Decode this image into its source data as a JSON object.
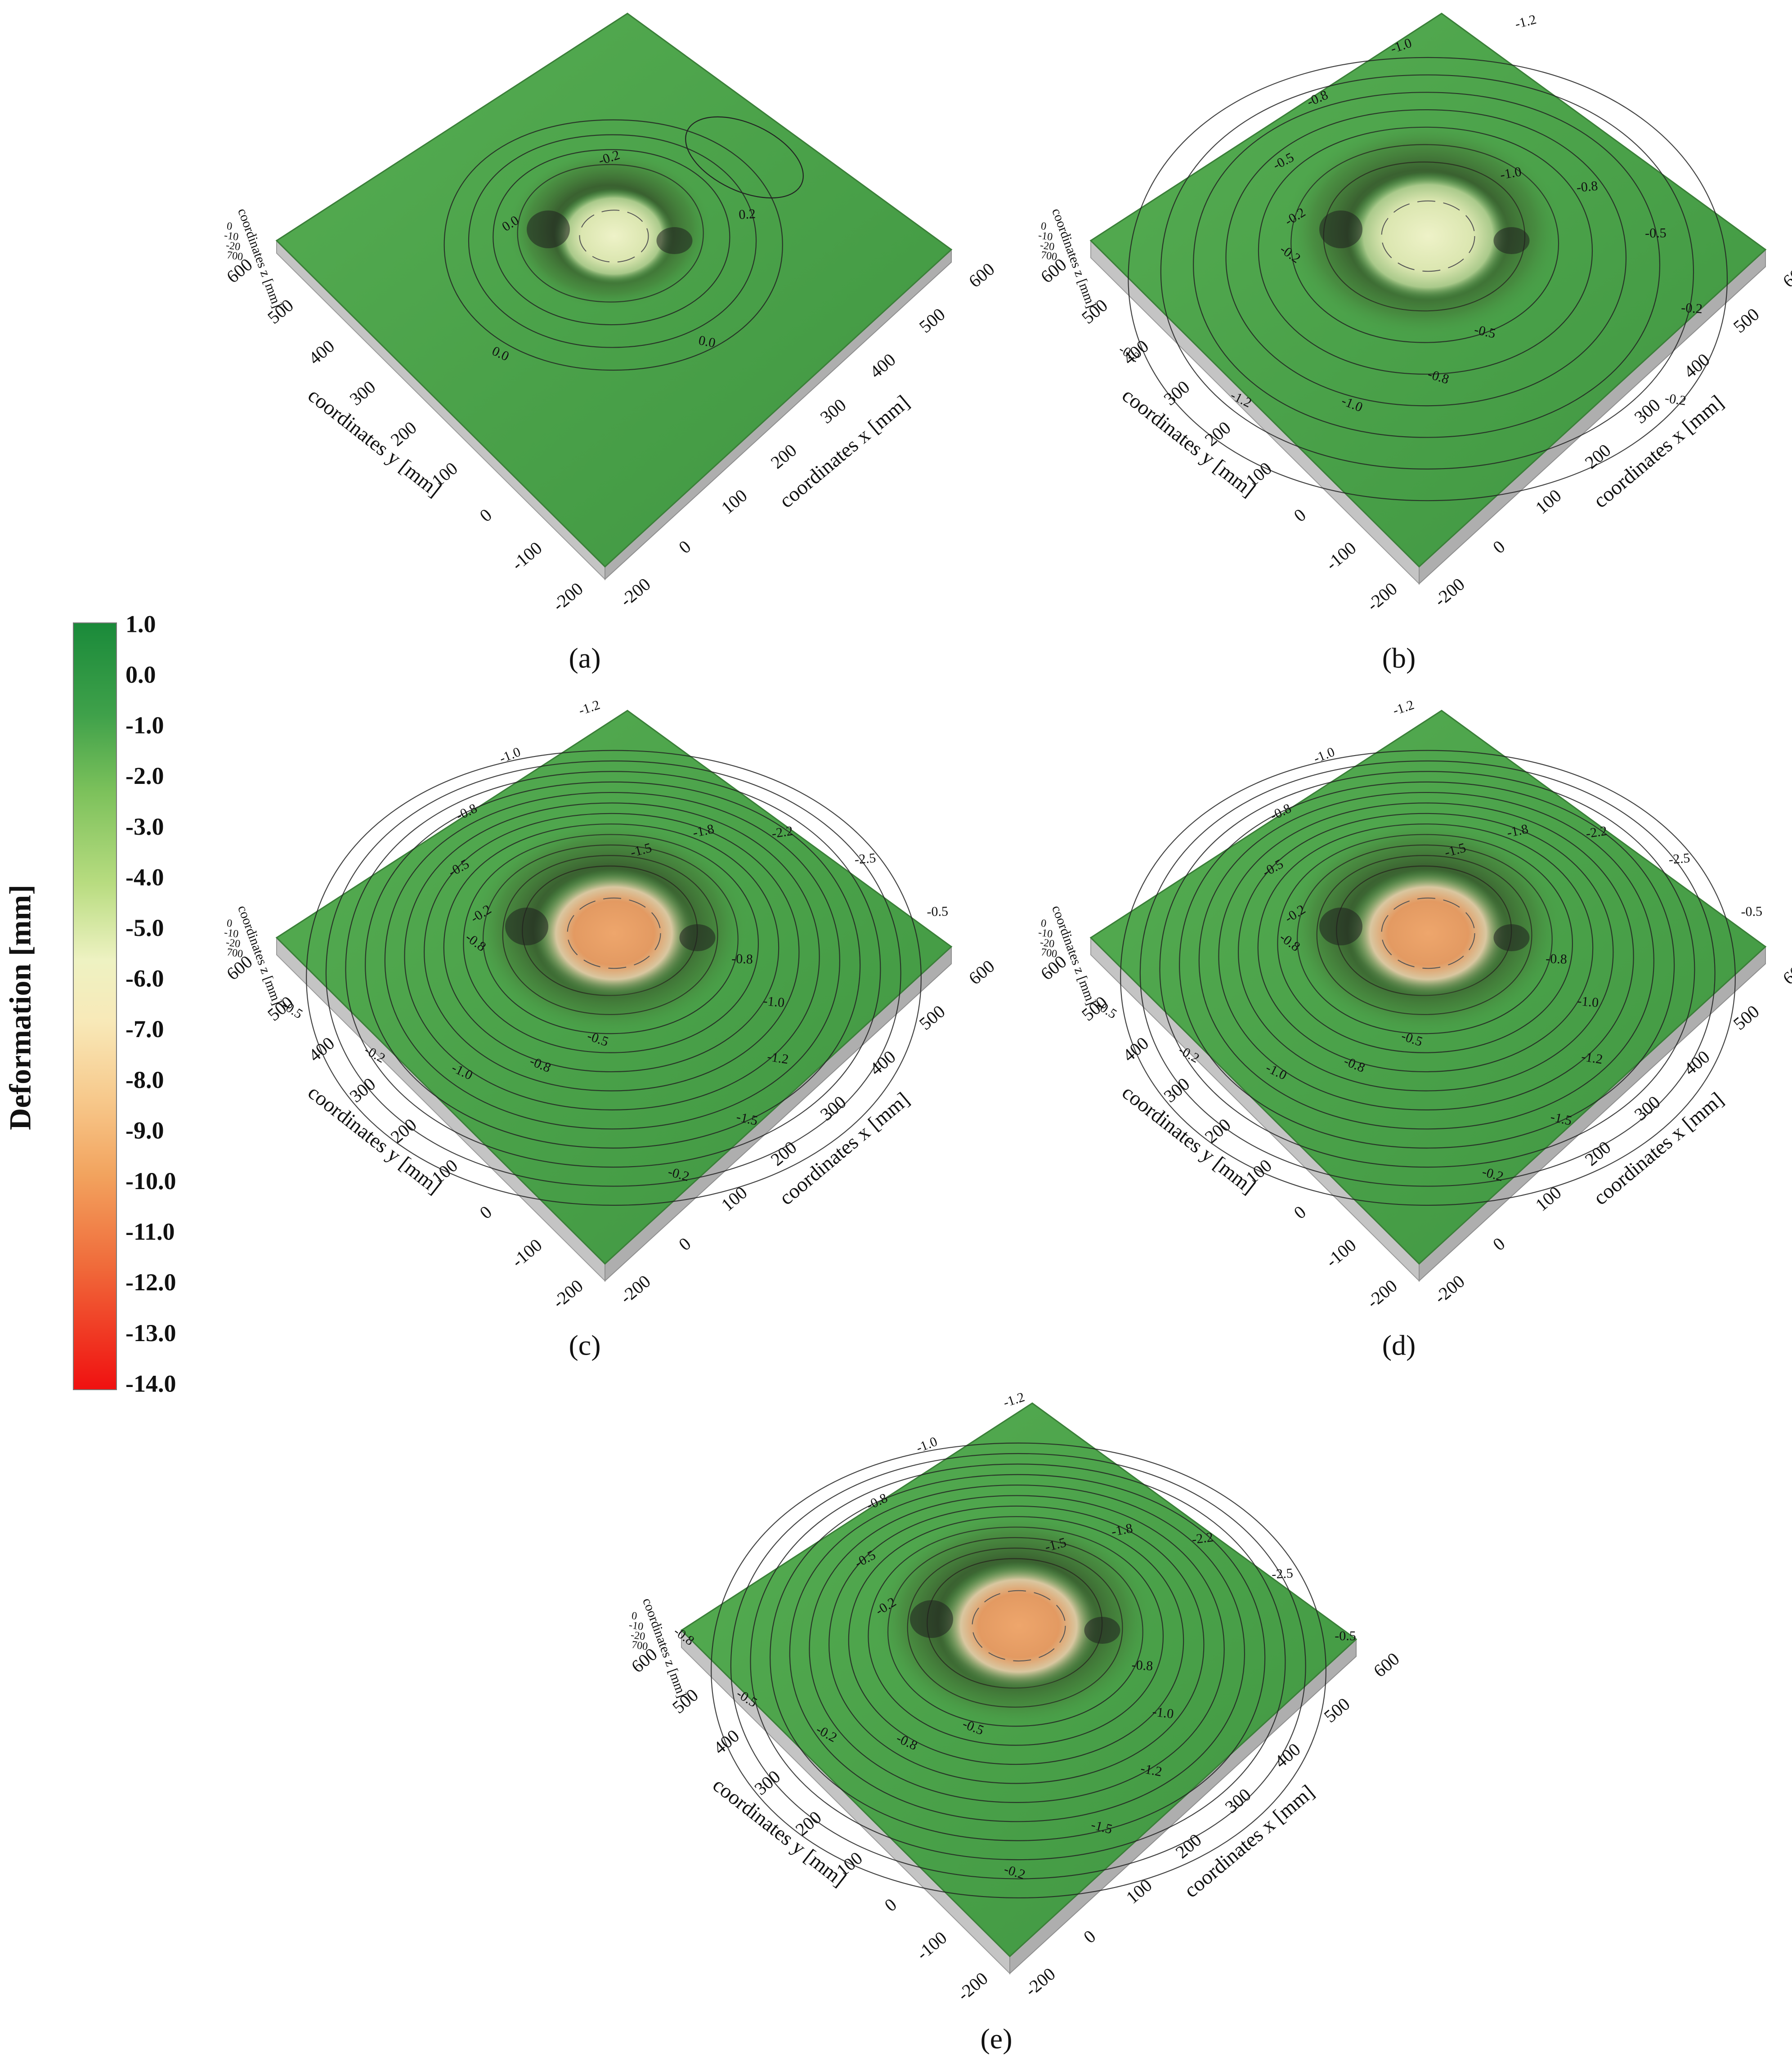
{
  "legend": {
    "title": "Deformation [mm]",
    "ticks": [
      "1.0",
      "0.0",
      "-1.0",
      "-2.0",
      "-3.0",
      "-4.0",
      "-5.0",
      "-6.0",
      "-7.0",
      "-8.0",
      "-9.0",
      "-10.0",
      "-11.0",
      "-12.0",
      "-13.0",
      "-14.0"
    ],
    "colors": {
      "top": "#1f8a3c",
      "mid_green": "#7fc25a",
      "pale": "#f4f3c7",
      "orange": "#f0a060",
      "red": "#f01010"
    }
  },
  "colors": {
    "surface_green": "#4ea34b",
    "surface_edge": "#3d8a3a",
    "side_gray": "#b9b9b9",
    "contour": "#2a2a2a",
    "center_pale": "#dfe6b8",
    "center_orange": "#e3a06a"
  },
  "axes": {
    "x_label": "coordinates x [mm]",
    "y_label": "coordinates y [mm]",
    "z_label": "coordinates z [mm]",
    "x_ticks": [
      "-200",
      "0",
      "100",
      "200",
      "300",
      "400",
      "500",
      "600"
    ],
    "y_ticks": [
      "-200",
      "-100",
      "0",
      "100",
      "200",
      "300",
      "400",
      "500",
      "600"
    ],
    "z_ticks": [
      "0",
      "-10",
      "-20",
      "700"
    ]
  },
  "panels": [
    {
      "id": "a",
      "caption": "(a)",
      "center": "pale",
      "contour_count": 4,
      "contour_labels": [
        "0.0",
        "-0.2",
        "0.2",
        "0.0",
        "0.0"
      ]
    },
    {
      "id": "b",
      "caption": "(b)",
      "center": "pale",
      "contour_count": 7,
      "contour_labels": [
        "-0.2",
        "-0.5",
        "-0.8",
        "-1.0",
        "-1.2",
        "-1.0",
        "-0.8",
        "-0.5",
        "-0.2",
        "-0.2",
        "-0.5",
        "-0.8",
        "-1.0",
        "-1.2",
        "-0.2",
        "-0.2"
      ]
    },
    {
      "id": "c",
      "caption": "(c)",
      "center": "orange",
      "contour_count": 12,
      "contour_labels": [
        "-0.2",
        "-0.5",
        "-0.8",
        "-1.0",
        "-1.2",
        "-1.5",
        "-1.8",
        "-2.2",
        "-2.5",
        "-0.5",
        "-0.8",
        "-1.0",
        "-1.2",
        "-1.5",
        "-0.2",
        "-0.5",
        "-0.8",
        "-1.0",
        "-0.2",
        "-0.5",
        "-0.8"
      ]
    },
    {
      "id": "d",
      "caption": "(d)",
      "center": "orange",
      "contour_count": 12,
      "contour_labels": [
        "-0.2",
        "-0.5",
        "-0.8",
        "-1.0",
        "-1.2",
        "-1.5",
        "-1.8",
        "-2.2",
        "-2.5",
        "-0.5",
        "-0.8",
        "-1.0",
        "-1.2",
        "-1.5",
        "-0.2",
        "-0.5",
        "-0.8",
        "-1.0",
        "-0.2",
        "-0.5",
        "-0.8"
      ]
    },
    {
      "id": "e",
      "caption": "(e)",
      "center": "orange",
      "contour_count": 12,
      "contour_labels": [
        "-0.2",
        "-0.5",
        "-0.8",
        "-1.0",
        "-1.2",
        "-1.5",
        "-1.8",
        "-2.2",
        "-2.5",
        "-0.5",
        "-0.8",
        "-1.0",
        "-1.2",
        "-1.5",
        "-0.2",
        "-0.5",
        "-0.8",
        "-0.2",
        "-0.5",
        "-0.8"
      ]
    }
  ],
  "chart_data": {
    "type": "heatmap",
    "title": "",
    "colorbar_label": "Deformation [mm]",
    "colorbar_range": [
      -14.0,
      1.0
    ],
    "colorbar_ticks": [
      1.0,
      0.0,
      -1.0,
      -2.0,
      -3.0,
      -4.0,
      -5.0,
      -6.0,
      -7.0,
      -8.0,
      -9.0,
      -10.0,
      -11.0,
      -12.0,
      -13.0,
      -14.0
    ],
    "xlabel": "coordinates x [mm]",
    "ylabel": "coordinates y [mm]",
    "zlabel": "coordinates z [mm]",
    "xlim": [
      -200,
      600
    ],
    "ylim": [
      -200,
      600
    ],
    "series": [
      {
        "name": "(a)",
        "contour_levels": [
          0.2,
          0.0,
          -0.2
        ],
        "center_deformation": -6.0
      },
      {
        "name": "(b)",
        "contour_levels": [
          -0.2,
          -0.5,
          -0.8,
          -1.0,
          -1.2
        ],
        "center_deformation": -6.5
      },
      {
        "name": "(c)",
        "contour_levels": [
          -0.2,
          -0.5,
          -0.8,
          -1.0,
          -1.2,
          -1.5,
          -1.8,
          -2.2,
          -2.5
        ],
        "center_deformation": -9.0
      },
      {
        "name": "(d)",
        "contour_levels": [
          -0.2,
          -0.5,
          -0.8,
          -1.0,
          -1.2,
          -1.5,
          -1.8,
          -2.2,
          -2.5
        ],
        "center_deformation": -9.5
      },
      {
        "name": "(e)",
        "contour_levels": [
          -0.2,
          -0.5,
          -0.8,
          -1.0,
          -1.2,
          -1.5,
          -1.8,
          -2.2,
          -2.5
        ],
        "center_deformation": -9.5
      }
    ]
  }
}
